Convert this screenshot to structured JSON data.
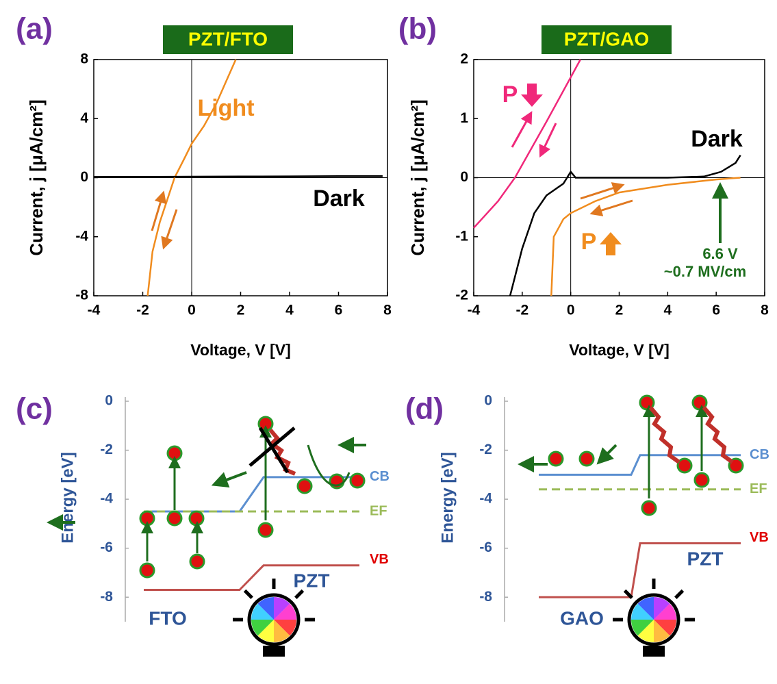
{
  "chart_data": [
    {
      "type": "line",
      "panel": "(a)",
      "title": "PZT/FTO",
      "xlabel": "Voltage, V [V]",
      "ylabel": "Current, j [μA/cm²]",
      "xlim": [
        -4,
        8
      ],
      "xticks": [
        -4,
        -2,
        0,
        2,
        4,
        6,
        8
      ],
      "ylim": [
        -8,
        8
      ],
      "yticks": [
        -8,
        -4,
        0,
        4,
        8
      ],
      "series": [
        {
          "name": "Light",
          "color": "#f08c1e",
          "x": [
            -1.8,
            -1.6,
            -1.3,
            -1.0,
            -0.7,
            -0.3,
            0,
            0.5,
            1.0,
            1.4,
            1.8
          ],
          "values": [
            -8,
            -5,
            -3,
            -1.5,
            0,
            1.3,
            2.3,
            3.5,
            5,
            6.5,
            8
          ]
        },
        {
          "name": "Dark",
          "color": "#000000",
          "x": [
            -4,
            -2,
            0,
            2,
            4,
            6,
            7.8
          ],
          "values": [
            0.05,
            0.06,
            0.07,
            0.08,
            0.09,
            0.1,
            0.1
          ]
        }
      ]
    },
    {
      "type": "line",
      "panel": "(b)",
      "title": "PZT/GAO",
      "xlabel": "Voltage, V [V]",
      "ylabel": "Current, j [μA/cm²]",
      "xlim": [
        -4,
        8
      ],
      "xticks": [
        -4,
        -2,
        0,
        2,
        4,
        6,
        8
      ],
      "ylim": [
        -2,
        2
      ],
      "yticks": [
        -2,
        -1,
        0,
        1,
        2
      ],
      "series": [
        {
          "name": "P",
          "color": "#f0287a",
          "x": [
            -4,
            -3,
            -2.3,
            -1,
            0,
            0.4
          ],
          "values": [
            -0.85,
            -0.4,
            0,
            0.95,
            1.7,
            2
          ]
        },
        {
          "name": "Dark",
          "color": "#000000",
          "x": [
            -2.5,
            -2,
            -1.5,
            -1,
            -0.3,
            0,
            0.2,
            2,
            4,
            5.5,
            6.2,
            6.8,
            7
          ],
          "values": [
            -2,
            -1.2,
            -0.6,
            -0.3,
            -0.1,
            0.1,
            0,
            0,
            0,
            0.02,
            0.1,
            0.25,
            0.38
          ]
        },
        {
          "name": "P",
          "color": "#f08c1e",
          "x": [
            -0.8,
            -0.7,
            -0.3,
            0,
            1,
            2,
            4,
            6,
            7
          ],
          "values": [
            -2,
            -1,
            -0.7,
            -0.6,
            -0.4,
            -0.25,
            -0.12,
            -0.03,
            0
          ]
        }
      ],
      "annotations": [
        "6.6 V",
        "~0.7 MV/cm"
      ]
    },
    {
      "type": "band",
      "panel": "(c)",
      "ylabel": "Energy [eV]",
      "ylim": [
        -9,
        0
      ],
      "yticks": [
        0,
        -2,
        -4,
        -6,
        -8
      ],
      "regions": [
        "FTO",
        "PZT"
      ],
      "bands": [
        {
          "name": "CB",
          "color": "#5b8fd0",
          "values": [
            -4.5,
            -3.1
          ]
        },
        {
          "name": "EF",
          "color": "#9bbb59",
          "values": [
            -4.5
          ]
        },
        {
          "name": "VB",
          "color": "#c0504d",
          "values": [
            -7.7,
            -6.7
          ]
        }
      ]
    },
    {
      "type": "band",
      "panel": "(d)",
      "ylabel": "Energy [eV]",
      "ylim": [
        -9,
        0
      ],
      "yticks": [
        0,
        -2,
        -4,
        -6,
        -8
      ],
      "regions": [
        "GAO",
        "PZT"
      ],
      "bands": [
        {
          "name": "CB",
          "color": "#5b8fd0",
          "values": [
            -3.0,
            -2.2
          ]
        },
        {
          "name": "EF",
          "color": "#9bbb59",
          "values": [
            -3.6
          ]
        },
        {
          "name": "VB",
          "color": "#c0504d",
          "values": [
            -8.0,
            -5.8
          ]
        }
      ]
    }
  ]
}
